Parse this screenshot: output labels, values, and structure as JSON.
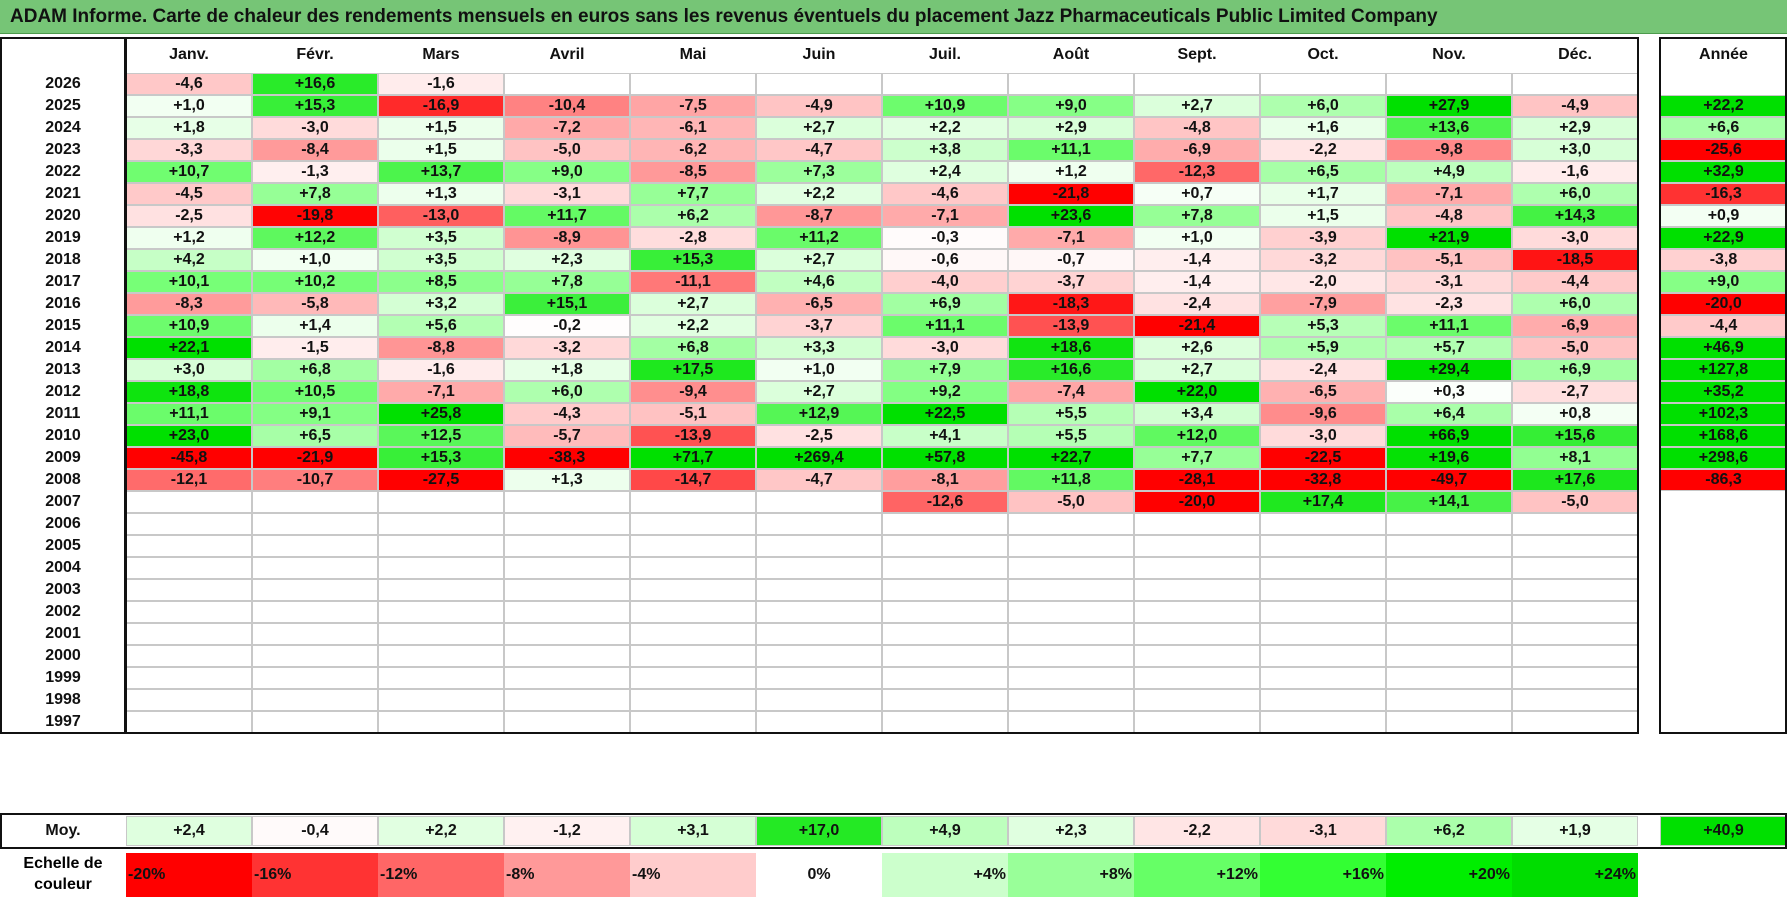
{
  "title": "ADAM Informe. Carte de chaleur des rendements mensuels en euros sans les revenus éventuels du placement Jazz Pharmaceuticals Public Limited Company",
  "colors": {
    "title_bg": "#76c576",
    "strong_red": "#ff0000",
    "strong_green": "#00e000",
    "zero": "#ffffff"
  },
  "chart_data": {
    "type": "heatmap",
    "months": [
      "Janv.",
      "Févr.",
      "Mars",
      "Avril",
      "Mai",
      "Juin",
      "Juil.",
      "Août",
      "Sept.",
      "Oct.",
      "Nov.",
      "Déc."
    ],
    "year_header": "Année",
    "avg_label": "Moy.",
    "rows": [
      {
        "year": "2026",
        "values": [
          "-4,6",
          "+16,6",
          "-1,6",
          "",
          "",
          "",
          "",
          "",
          "",
          "",
          "",
          ""
        ],
        "annual": ""
      },
      {
        "year": "2025",
        "values": [
          "+1,0",
          "+15,3",
          "-16,9",
          "-10,4",
          "-7,5",
          "-4,9",
          "+10,9",
          "+9,0",
          "+2,7",
          "+6,0",
          "+27,9",
          "-4,9"
        ],
        "annual": "+22,2"
      },
      {
        "year": "2024",
        "values": [
          "+1,8",
          "-3,0",
          "+1,5",
          "-7,2",
          "-6,1",
          "+2,7",
          "+2,2",
          "+2,9",
          "-4,8",
          "+1,6",
          "+13,6",
          "+2,9"
        ],
        "annual": "+6,6"
      },
      {
        "year": "2023",
        "values": [
          "-3,3",
          "-8,4",
          "+1,5",
          "-5,0",
          "-6,2",
          "-4,7",
          "+3,8",
          "+11,1",
          "-6,9",
          "-2,2",
          "-9,8",
          "+3,0"
        ],
        "annual": "-25,6"
      },
      {
        "year": "2022",
        "values": [
          "+10,7",
          "-1,3",
          "+13,7",
          "+9,0",
          "-8,5",
          "+7,3",
          "+2,4",
          "+1,2",
          "-12,3",
          "+6,5",
          "+4,9",
          "-1,6"
        ],
        "annual": "+32,9"
      },
      {
        "year": "2021",
        "values": [
          "-4,5",
          "+7,8",
          "+1,3",
          "-3,1",
          "+7,7",
          "+2,2",
          "-4,6",
          "-21,8",
          "+0,7",
          "+1,7",
          "-7,1",
          "+6,0"
        ],
        "annual": "-16,3"
      },
      {
        "year": "2020",
        "values": [
          "-2,5",
          "-19,8",
          "-13,0",
          "+11,7",
          "+6,2",
          "-8,7",
          "-7,1",
          "+23,6",
          "+7,8",
          "+1,5",
          "-4,8",
          "+14,3"
        ],
        "annual": "+0,9"
      },
      {
        "year": "2019",
        "values": [
          "+1,2",
          "+12,2",
          "+3,5",
          "-8,9",
          "-2,8",
          "+11,2",
          "-0,3",
          "-7,1",
          "+1,0",
          "-3,9",
          "+21,9",
          "-3,0"
        ],
        "annual": "+22,9"
      },
      {
        "year": "2018",
        "values": [
          "+4,2",
          "+1,0",
          "+3,5",
          "+2,3",
          "+15,3",
          "+2,7",
          "-0,6",
          "-0,7",
          "-1,4",
          "-3,2",
          "-5,1",
          "-18,5"
        ],
        "annual": "-3,8"
      },
      {
        "year": "2017",
        "values": [
          "+10,1",
          "+10,2",
          "+8,5",
          "+7,8",
          "-11,1",
          "+4,6",
          "-4,0",
          "-3,7",
          "-1,4",
          "-2,0",
          "-3,1",
          "-4,4"
        ],
        "annual": "+9,0"
      },
      {
        "year": "2016",
        "values": [
          "-8,3",
          "-5,8",
          "+3,2",
          "+15,1",
          "+2,7",
          "-6,5",
          "+6,9",
          "-18,3",
          "-2,4",
          "-7,9",
          "-2,3",
          "+6,0"
        ],
        "annual": "-20,0"
      },
      {
        "year": "2015",
        "values": [
          "+10,9",
          "+1,4",
          "+5,6",
          "-0,2",
          "+2,2",
          "-3,7",
          "+11,1",
          "-13,9",
          "-21,4",
          "+5,3",
          "+11,1",
          "-6,9"
        ],
        "annual": "-4,4"
      },
      {
        "year": "2014",
        "values": [
          "+22,1",
          "-1,5",
          "-8,8",
          "-3,2",
          "+6,8",
          "+3,3",
          "-3,0",
          "+18,6",
          "+2,6",
          "+5,9",
          "+5,7",
          "-5,0"
        ],
        "annual": "+46,9"
      },
      {
        "year": "2013",
        "values": [
          "+3,0",
          "+6,8",
          "-1,6",
          "+1,8",
          "+17,5",
          "+1,0",
          "+7,9",
          "+16,6",
          "+2,7",
          "-2,4",
          "+29,4",
          "+6,9"
        ],
        "annual": "+127,8"
      },
      {
        "year": "2012",
        "values": [
          "+18,8",
          "+10,5",
          "-7,1",
          "+6,0",
          "-9,4",
          "+2,7",
          "+9,2",
          "-7,4",
          "+22,0",
          "-6,5",
          "+0,3",
          "-2,7"
        ],
        "annual": "+35,2"
      },
      {
        "year": "2011",
        "values": [
          "+11,1",
          "+9,1",
          "+25,8",
          "-4,3",
          "-5,1",
          "+12,9",
          "+22,5",
          "+5,5",
          "+3,4",
          "-9,6",
          "+6,4",
          "+0,8"
        ],
        "annual": "+102,3"
      },
      {
        "year": "2010",
        "values": [
          "+23,0",
          "+6,5",
          "+12,5",
          "-5,7",
          "-13,9",
          "-2,5",
          "+4,1",
          "+5,5",
          "+12,0",
          "-3,0",
          "+66,9",
          "+15,6"
        ],
        "annual": "+168,6"
      },
      {
        "year": "2009",
        "values": [
          "-45,8",
          "-21,9",
          "+15,3",
          "-38,3",
          "+71,7",
          "+269,4",
          "+57,8",
          "+22,7",
          "+7,7",
          "-22,5",
          "+19,6",
          "+8,1"
        ],
        "annual": "+298,6"
      },
      {
        "year": "2008",
        "values": [
          "-12,1",
          "-10,7",
          "-27,5",
          "+1,3",
          "-14,7",
          "-4,7",
          "-8,1",
          "+11,8",
          "-28,1",
          "-32,8",
          "-49,7",
          "+17,6"
        ],
        "annual": "-86,3"
      },
      {
        "year": "2007",
        "values": [
          "",
          "",
          "",
          "",
          "",
          "",
          "-12,6",
          "-5,0",
          "-20,0",
          "+17,4",
          "+14,1",
          "-5,0"
        ],
        "annual": ""
      },
      {
        "year": "2006",
        "values": [
          "",
          "",
          "",
          "",
          "",
          "",
          "",
          "",
          "",
          "",
          "",
          ""
        ],
        "annual": ""
      },
      {
        "year": "2005",
        "values": [
          "",
          "",
          "",
          "",
          "",
          "",
          "",
          "",
          "",
          "",
          "",
          ""
        ],
        "annual": ""
      },
      {
        "year": "2004",
        "values": [
          "",
          "",
          "",
          "",
          "",
          "",
          "",
          "",
          "",
          "",
          "",
          ""
        ],
        "annual": ""
      },
      {
        "year": "2003",
        "values": [
          "",
          "",
          "",
          "",
          "",
          "",
          "",
          "",
          "",
          "",
          "",
          ""
        ],
        "annual": ""
      },
      {
        "year": "2002",
        "values": [
          "",
          "",
          "",
          "",
          "",
          "",
          "",
          "",
          "",
          "",
          "",
          ""
        ],
        "annual": ""
      },
      {
        "year": "2001",
        "values": [
          "",
          "",
          "",
          "",
          "",
          "",
          "",
          "",
          "",
          "",
          "",
          ""
        ],
        "annual": ""
      },
      {
        "year": "2000",
        "values": [
          "",
          "",
          "",
          "",
          "",
          "",
          "",
          "",
          "",
          "",
          "",
          ""
        ],
        "annual": ""
      },
      {
        "year": "1999",
        "values": [
          "",
          "",
          "",
          "",
          "",
          "",
          "",
          "",
          "",
          "",
          "",
          ""
        ],
        "annual": ""
      },
      {
        "year": "1998",
        "values": [
          "",
          "",
          "",
          "",
          "",
          "",
          "",
          "",
          "",
          "",
          "",
          ""
        ],
        "annual": ""
      },
      {
        "year": "1997",
        "values": [
          "",
          "",
          "",
          "",
          "",
          "",
          "",
          "",
          "",
          "",
          "",
          ""
        ],
        "annual": ""
      }
    ],
    "averages": [
      "+2,4",
      "-0,4",
      "+2,2",
      "-1,2",
      "+3,1",
      "+17,0",
      "+4,9",
      "+2,3",
      "-2,2",
      "-3,1",
      "+6,2",
      "+1,9"
    ],
    "annual_average": "+40,9",
    "scale_label_line1": "Echelle de",
    "scale_label_line2": "couleur",
    "scale": [
      {
        "label": "-20%",
        "value": -20,
        "color": "#ff0000"
      },
      {
        "label": "-16%",
        "value": -16,
        "color": "#ff3333"
      },
      {
        "label": "-12%",
        "value": -12,
        "color": "#ff6666"
      },
      {
        "label": "-8%",
        "value": -8,
        "color": "#ff9999"
      },
      {
        "label": "-4%",
        "value": -4,
        "color": "#ffcccc"
      },
      {
        "label": "0%",
        "value": 0,
        "color": "#ffffff"
      },
      {
        "label": "+4%",
        "value": 4,
        "color": "#ccffcc"
      },
      {
        "label": "+8%",
        "value": 8,
        "color": "#99ff99"
      },
      {
        "label": "+12%",
        "value": 12,
        "color": "#66ff66"
      },
      {
        "label": "+16%",
        "value": 16,
        "color": "#33ff33"
      },
      {
        "label": "+20%",
        "value": 20,
        "color": "#00ee00"
      },
      {
        "label": "+24%",
        "value": 24,
        "color": "#00dd00"
      }
    ]
  }
}
